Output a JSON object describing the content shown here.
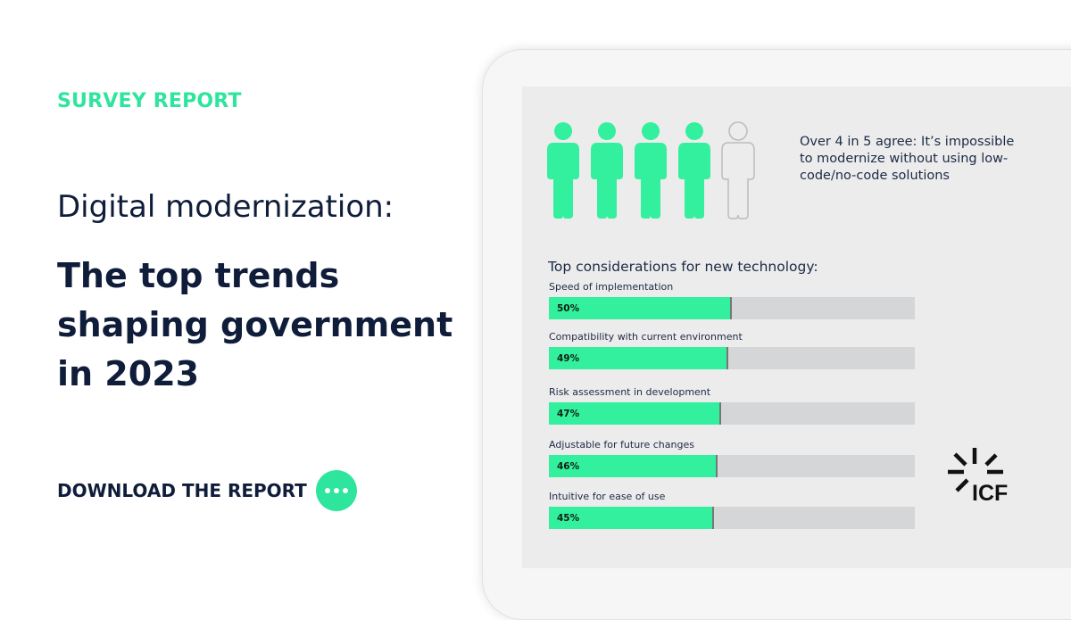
{
  "eyebrow": "SURVEY REPORT",
  "subtitle": "Digital modernization:",
  "title": "The top trends shaping government in 2023",
  "cta": {
    "label": "DOWNLOAD THE  REPORT",
    "icon": "ellipsis-icon"
  },
  "stat": {
    "text": "Over 4 in 5 agree: It’s impossible to modernize without using low-code/no-code solutions",
    "filled": 4,
    "total": 5
  },
  "logo": "ICF",
  "colors": {
    "accent": "#2ee59d",
    "navy": "#0f1d3a",
    "track": "#d5d6d8"
  },
  "chart_data": {
    "type": "bar",
    "orientation": "horizontal",
    "title": "Top considerations for new technology:",
    "categories": [
      "Speed of implementation",
      "Compatibility with current environment",
      "Risk assessment in development",
      "Adjustable for future changes",
      "Intuitive for ease of use"
    ],
    "values": [
      50,
      49,
      47,
      46,
      45
    ],
    "labels": [
      "50%",
      "49%",
      "47%",
      "46%",
      "45%"
    ],
    "xlim": [
      0,
      100
    ],
    "grid": false
  }
}
